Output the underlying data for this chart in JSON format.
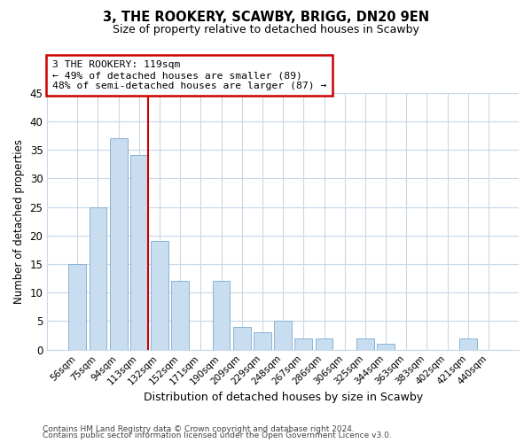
{
  "title": "3, THE ROOKERY, SCAWBY, BRIGG, DN20 9EN",
  "subtitle": "Size of property relative to detached houses in Scawby",
  "xlabel": "Distribution of detached houses by size in Scawby",
  "ylabel": "Number of detached properties",
  "bar_labels": [
    "56sqm",
    "75sqm",
    "94sqm",
    "113sqm",
    "132sqm",
    "152sqm",
    "171sqm",
    "190sqm",
    "209sqm",
    "229sqm",
    "248sqm",
    "267sqm",
    "286sqm",
    "306sqm",
    "325sqm",
    "344sqm",
    "363sqm",
    "383sqm",
    "402sqm",
    "421sqm",
    "440sqm"
  ],
  "bar_values": [
    15,
    25,
    37,
    34,
    19,
    12,
    0,
    12,
    4,
    3,
    5,
    2,
    2,
    0,
    2,
    1,
    0,
    0,
    0,
    2,
    0
  ],
  "bar_color": "#c9ddf0",
  "bar_edge_color": "#8ab4d4",
  "highlight_bar_index": 3,
  "highlight_color": "#cc0000",
  "annotation_lines": [
    "3 THE ROOKERY: 119sqm",
    "← 49% of detached houses are smaller (89)",
    "48% of semi-detached houses are larger (87) →"
  ],
  "ylim": [
    0,
    45
  ],
  "yticks": [
    0,
    5,
    10,
    15,
    20,
    25,
    30,
    35,
    40,
    45
  ],
  "footer_lines": [
    "Contains HM Land Registry data © Crown copyright and database right 2024.",
    "Contains public sector information licensed under the Open Government Licence v3.0."
  ],
  "background_color": "#ffffff",
  "grid_color": "#c8d8e8"
}
